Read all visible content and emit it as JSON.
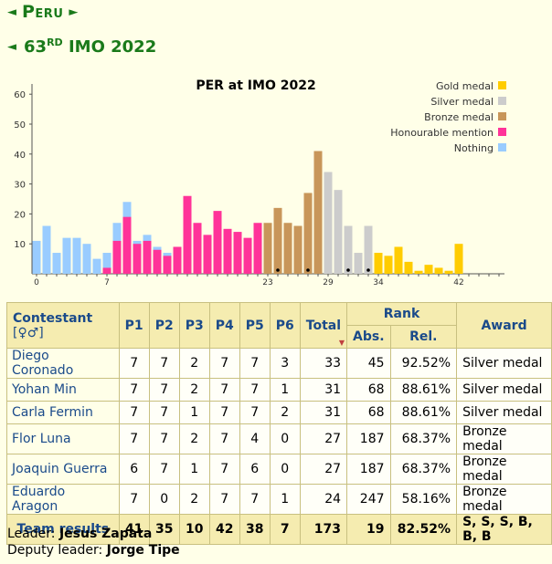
{
  "header": {
    "country": "Peru",
    "olympiad_prefix": "63",
    "olympiad_suffix": "RD",
    "olympiad_rest": "IMO 2022",
    "prev_arrow": "◄",
    "next_arrow": "►"
  },
  "chart_data": {
    "type": "bar",
    "title": "PER at IMO 2022",
    "ylim": [
      0,
      65
    ],
    "yticks": [
      10,
      20,
      30,
      40,
      50,
      60
    ],
    "xticks": [
      0,
      7,
      23,
      29,
      34,
      42
    ],
    "team_markers_at": [
      24,
      27,
      31,
      33
    ],
    "legend": {
      "position": "top-right",
      "items": [
        {
          "label": "Gold medal",
          "color": "#ffcc00"
        },
        {
          "label": "Silver medal",
          "color": "#cccccc"
        },
        {
          "label": "Bronze medal",
          "color": "#c8965a"
        },
        {
          "label": "Honourable mention",
          "color": "#ff3399"
        },
        {
          "label": "Nothing",
          "color": "#99ccff"
        }
      ]
    },
    "colors": {
      "nothing": "#99ccff",
      "hm": "#ff3399",
      "bronze": "#c8965a",
      "silver": "#cccccc",
      "gold": "#ffcc00"
    },
    "series": [
      {
        "name": "Nothing",
        "x": [
          0,
          1,
          2,
          3,
          4,
          5,
          6,
          7,
          8,
          9,
          10,
          11,
          12,
          13,
          14,
          15
        ],
        "values": [
          11,
          16,
          7,
          12,
          12,
          10,
          5,
          7,
          17,
          24,
          11,
          13,
          9,
          7,
          9,
          0
        ]
      },
      {
        "name": "Honourable mention",
        "x": [
          7,
          8,
          9,
          10,
          11,
          12,
          13,
          14,
          15,
          16,
          17,
          18,
          19,
          20,
          21,
          22
        ],
        "values": [
          2,
          11,
          19,
          10,
          11,
          8,
          6,
          9,
          26,
          17,
          13,
          21,
          15,
          14,
          12,
          17
        ]
      },
      {
        "name": "Bronze medal",
        "x": [
          23,
          24,
          25,
          26,
          27,
          28
        ],
        "values": [
          17,
          22,
          17,
          16,
          27,
          41
        ]
      },
      {
        "name": "Silver medal",
        "x": [
          29,
          30,
          31,
          32,
          33
        ],
        "values": [
          34,
          28,
          16,
          7,
          16
        ]
      },
      {
        "name": "Gold medal",
        "x": [
          34,
          35,
          36,
          37,
          38,
          39,
          40,
          41,
          42
        ],
        "values": [
          7,
          6,
          9,
          4,
          1,
          3,
          2,
          1,
          10
        ]
      }
    ]
  },
  "table": {
    "headers": {
      "contestant": "Contestant",
      "contestant_suffix": "[♀♂]",
      "problems": [
        "P1",
        "P2",
        "P3",
        "P4",
        "P5",
        "P6"
      ],
      "total": "Total",
      "rank": "Rank",
      "abs": "Abs.",
      "rel": "Rel.",
      "award": "Award"
    },
    "rows": [
      {
        "name": "Diego Coronado",
        "scores": [
          "7",
          "7",
          "2",
          "7",
          "7",
          "3"
        ],
        "total": "33",
        "abs": "45",
        "rel": "92.52%",
        "award": "Silver medal"
      },
      {
        "name": "Yohan Min",
        "scores": [
          "7",
          "7",
          "2",
          "7",
          "7",
          "1"
        ],
        "total": "31",
        "abs": "68",
        "rel": "88.61%",
        "award": "Silver medal"
      },
      {
        "name": "Carla Fermin",
        "scores": [
          "7",
          "7",
          "1",
          "7",
          "7",
          "2"
        ],
        "total": "31",
        "abs": "68",
        "rel": "88.61%",
        "award": "Silver medal"
      },
      {
        "name": "Flor Luna",
        "scores": [
          "7",
          "7",
          "2",
          "7",
          "4",
          "0"
        ],
        "total": "27",
        "abs": "187",
        "rel": "68.37%",
        "award": "Bronze medal"
      },
      {
        "name": "Joaquin Guerra",
        "scores": [
          "6",
          "7",
          "1",
          "7",
          "6",
          "0"
        ],
        "total": "27",
        "abs": "187",
        "rel": "68.37%",
        "award": "Bronze medal"
      },
      {
        "name": "Eduardo Aragon",
        "scores": [
          "7",
          "0",
          "2",
          "7",
          "7",
          "1"
        ],
        "total": "24",
        "abs": "247",
        "rel": "58.16%",
        "award": "Bronze medal"
      }
    ],
    "team": {
      "label": "Team results",
      "scores": [
        "41",
        "35",
        "10",
        "42",
        "38",
        "7"
      ],
      "total": "173",
      "abs": "19",
      "rel": "82.52%",
      "award": "S, S, S, B, B, B"
    }
  },
  "leaders": {
    "leader_label": "Leader:",
    "leader_name": "Jesus Zapata",
    "deputy_label": "Deputy leader:",
    "deputy_name": "Jorge Tipe"
  }
}
